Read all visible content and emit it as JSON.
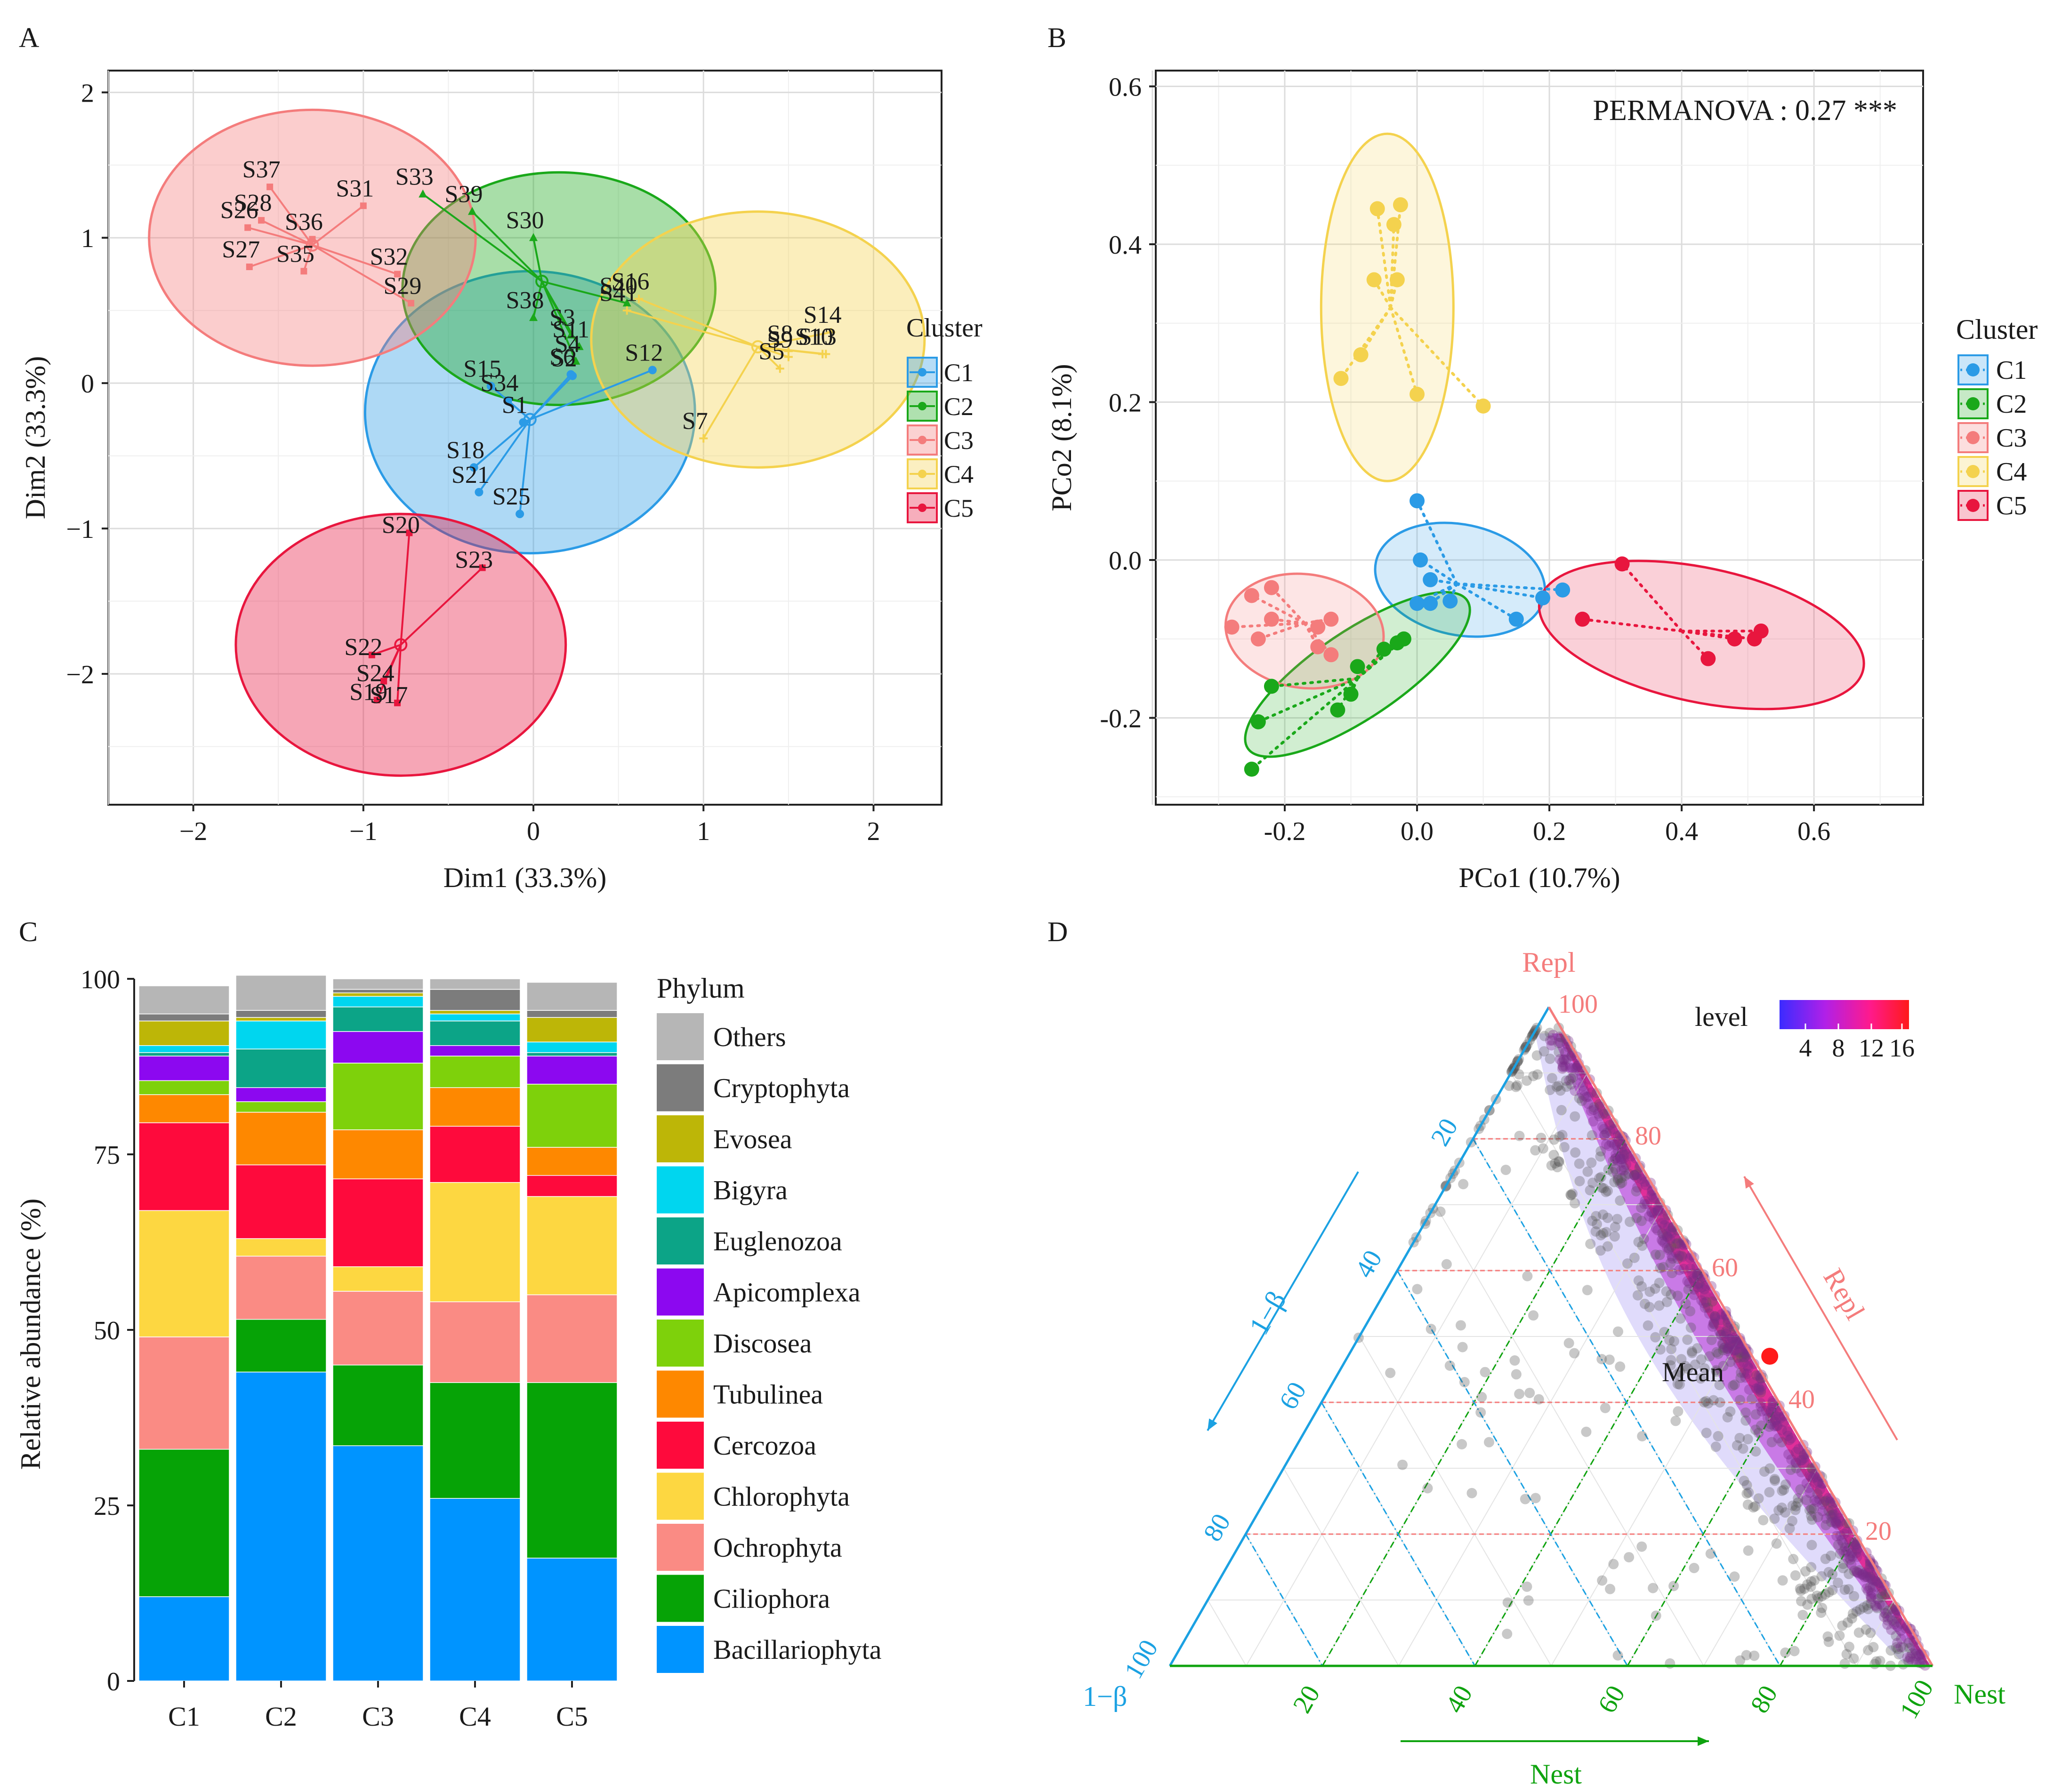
{
  "panels": {
    "a": "A",
    "b": "B",
    "c": "C",
    "d": "D"
  },
  "colors": {
    "C1": "#2b9be6",
    "C2": "#1aa81a",
    "C3": "#f47c7c",
    "C4": "#f4d24e",
    "C5": "#e8163e"
  },
  "chart_data": [
    {
      "id": "A",
      "type": "scatter",
      "title": "",
      "xlabel": "Dim1 (33.3%)",
      "ylabel": "Dim2 (33.3%)",
      "xlim": [
        -2.5,
        2.4
      ],
      "ylim": [
        -2.9,
        2.15
      ],
      "xticks": [
        -2,
        -1,
        0,
        1,
        2
      ],
      "yticks": [
        -2,
        -1,
        0,
        1,
        2
      ],
      "legend_title": "Cluster",
      "legend": [
        "C1",
        "C2",
        "C3",
        "C4",
        "C5"
      ],
      "series": [
        {
          "name": "C1",
          "center": [
            -0.02,
            -0.25
          ],
          "ellipse": {
            "cx": -0.02,
            "cy": -0.2,
            "rx": 0.97,
            "ry": 0.97
          },
          "points": [
            [
              "S1",
              -0.06,
              -0.27
            ],
            [
              "S2",
              0.23,
              0.05
            ],
            [
              "S6",
              0.22,
              0.06
            ],
            [
              "S12",
              0.7,
              0.09
            ],
            [
              "S15",
              -0.25,
              -0.02
            ],
            [
              "S18",
              -0.35,
              -0.58
            ],
            [
              "S21",
              -0.32,
              -0.75
            ],
            [
              "S25",
              -0.08,
              -0.9
            ],
            [
              "S34",
              -0.15,
              -0.12
            ]
          ]
        },
        {
          "name": "C2",
          "center": [
            0.05,
            0.7
          ],
          "ellipse": {
            "cx": 0.15,
            "cy": 0.65,
            "rx": 0.92,
            "ry": 0.8
          },
          "points": [
            [
              "S33",
              -0.65,
              1.3
            ],
            [
              "S39",
              -0.36,
              1.18
            ],
            [
              "S30",
              0.0,
              1.0
            ],
            [
              "S38",
              0.0,
              0.45
            ],
            [
              "S3",
              0.22,
              0.33
            ],
            [
              "S11",
              0.27,
              0.25
            ],
            [
              "S4",
              0.25,
              0.15
            ],
            [
              "S40",
              0.55,
              0.55
            ]
          ]
        },
        {
          "name": "C3",
          "center": [
            -1.3,
            0.95
          ],
          "ellipse": {
            "cx": -1.3,
            "cy": 1.0,
            "rx": 0.96,
            "ry": 0.88
          },
          "points": [
            [
              "S37",
              -1.55,
              1.35
            ],
            [
              "S28",
              -1.6,
              1.12
            ],
            [
              "S26",
              -1.68,
              1.07
            ],
            [
              "S27",
              -1.67,
              0.8
            ],
            [
              "S36",
              -1.3,
              0.99
            ],
            [
              "S35",
              -1.35,
              0.77
            ],
            [
              "S31",
              -1.0,
              1.22
            ],
            [
              "S32",
              -0.8,
              0.75
            ],
            [
              "S29",
              -0.72,
              0.55
            ]
          ]
        },
        {
          "name": "C4",
          "center": [
            1.32,
            0.25
          ],
          "ellipse": {
            "cx": 1.32,
            "cy": 0.3,
            "rx": 0.98,
            "ry": 0.88
          },
          "points": [
            [
              "S16",
              0.62,
              0.58
            ],
            [
              "S41",
              0.55,
              0.5
            ],
            [
              "S9",
              1.5,
              0.18
            ],
            [
              "S14",
              1.75,
              0.35
            ],
            [
              "S13",
              1.72,
              0.2
            ],
            [
              "S8",
              1.5,
              0.22
            ],
            [
              "S5",
              1.45,
              0.1
            ],
            [
              "S10",
              1.7,
              0.2
            ],
            [
              "S7",
              1.0,
              -0.38
            ]
          ]
        },
        {
          "name": "C5",
          "center": [
            -0.78,
            -1.8
          ],
          "ellipse": {
            "cx": -0.78,
            "cy": -1.8,
            "rx": 0.97,
            "ry": 0.9
          },
          "points": [
            [
              "S20",
              -0.73,
              -1.03
            ],
            [
              "S23",
              -0.3,
              -1.27
            ],
            [
              "S22",
              -0.95,
              -1.87
            ],
            [
              "S24",
              -0.88,
              -2.05
            ],
            [
              "S19",
              -0.92,
              -2.18
            ],
            [
              "S17",
              -0.8,
              -2.2
            ]
          ]
        }
      ]
    },
    {
      "id": "B",
      "type": "scatter",
      "title": "",
      "annotation": "PERMANOVA : 0.27 ***",
      "xlabel": "PCo1 (10.7%)",
      "ylabel": "PCo2 (8.1%)",
      "xlim": [
        -0.395,
        0.765
      ],
      "ylim": [
        -0.31,
        0.62
      ],
      "xticks": [
        -0.2,
        0.0,
        0.2,
        0.4,
        0.6
      ],
      "xtick_labels": [
        "-0.2",
        "0.0",
        "0.2",
        "0.4",
        "0.6"
      ],
      "yticks": [
        -0.2,
        0.0,
        0.2,
        0.4,
        0.6
      ],
      "ytick_labels": [
        "-0.2",
        "0.0",
        "0.2",
        "0.4",
        "0.6"
      ],
      "legend_title": "Cluster",
      "legend": [
        "C1",
        "C2",
        "C3",
        "C4",
        "C5"
      ],
      "series": [
        {
          "name": "C1",
          "center": [
            0.06,
            -0.03
          ],
          "ellipse": {
            "cx": 0.065,
            "cy": -0.025,
            "rx": 0.13,
            "ry": 0.07,
            "angle": -12
          },
          "points": [
            [
              0.0,
              0.075
            ],
            [
              0.005,
              0.0
            ],
            [
              0.02,
              -0.025
            ],
            [
              0.0,
              -0.055
            ],
            [
              0.02,
              -0.055
            ],
            [
              0.05,
              -0.052
            ],
            [
              0.15,
              -0.075
            ],
            [
              0.19,
              -0.048
            ],
            [
              0.22,
              -0.038
            ]
          ]
        },
        {
          "name": "C2",
          "center": [
            -0.09,
            -0.15
          ],
          "ellipse": {
            "cx": -0.09,
            "cy": -0.145,
            "rx": 0.2,
            "ry": 0.055,
            "angle": 34
          },
          "points": [
            [
              -0.25,
              -0.265
            ],
            [
              -0.24,
              -0.205
            ],
            [
              -0.22,
              -0.16
            ],
            [
              -0.12,
              -0.19
            ],
            [
              -0.1,
              -0.17
            ],
            [
              -0.09,
              -0.135
            ],
            [
              -0.05,
              -0.113
            ],
            [
              -0.03,
              -0.105
            ],
            [
              -0.02,
              -0.1
            ]
          ]
        },
        {
          "name": "C3",
          "center": [
            -0.17,
            -0.08
          ],
          "ellipse": {
            "cx": -0.17,
            "cy": -0.09,
            "rx": 0.12,
            "ry": 0.072,
            "angle": -8
          },
          "points": [
            [
              -0.28,
              -0.085
            ],
            [
              -0.25,
              -0.045
            ],
            [
              -0.24,
              -0.1
            ],
            [
              -0.22,
              -0.035
            ],
            [
              -0.22,
              -0.075
            ],
            [
              -0.15,
              -0.11
            ],
            [
              -0.15,
              -0.085
            ],
            [
              -0.13,
              -0.12
            ],
            [
              -0.13,
              -0.075
            ]
          ]
        },
        {
          "name": "C4",
          "center": [
            -0.04,
            0.32
          ],
          "ellipse": {
            "cx": -0.045,
            "cy": 0.32,
            "rx": 0.1,
            "ry": 0.22
          },
          "points": [
            [
              -0.06,
              0.445
            ],
            [
              -0.035,
              0.425
            ],
            [
              -0.025,
              0.45
            ],
            [
              -0.065,
              0.355
            ],
            [
              -0.03,
              0.355
            ],
            [
              -0.085,
              0.26
            ],
            [
              -0.115,
              0.23
            ],
            [
              0.0,
              0.21
            ],
            [
              0.1,
              0.195
            ]
          ]
        },
        {
          "name": "C5",
          "center": [
            0.4,
            -0.09
          ],
          "ellipse": {
            "cx": 0.43,
            "cy": -0.095,
            "rx": 0.25,
            "ry": 0.085,
            "angle": -12
          },
          "points": [
            [
              0.25,
              -0.075
            ],
            [
              0.31,
              -0.005
            ],
            [
              0.44,
              -0.125
            ],
            [
              0.48,
              -0.1
            ],
            [
              0.51,
              -0.1
            ],
            [
              0.52,
              -0.09
            ]
          ]
        }
      ]
    },
    {
      "id": "C",
      "type": "bar",
      "stacked": true,
      "title": "",
      "xlabel": "",
      "ylabel": "Relative abundance (%)",
      "ylim": [
        0,
        100
      ],
      "yticks": [
        0,
        25,
        50,
        75,
        100
      ],
      "categories": [
        "C1",
        "C2",
        "C3",
        "C4",
        "C5"
      ],
      "legend_title": "Phylum",
      "series": [
        {
          "name": "Bacillariophyta",
          "color": "#0094ff",
          "values": [
            12,
            44,
            33.5,
            26,
            17.5
          ]
        },
        {
          "name": "Ciliophora",
          "color": "#06a306",
          "values": [
            21,
            7.5,
            11.5,
            16.5,
            25
          ]
        },
        {
          "name": "Ochrophyta",
          "color": "#fa8b84",
          "values": [
            16,
            9,
            10.5,
            11.5,
            12.5
          ]
        },
        {
          "name": "Chlorophyta",
          "color": "#fdd741",
          "values": [
            18,
            2.5,
            3.5,
            17,
            14
          ]
        },
        {
          "name": "Cercozoa",
          "color": "#fe0a3c",
          "values": [
            12.5,
            10.5,
            12.5,
            8,
            3
          ]
        },
        {
          "name": "Tubulinea",
          "color": "#fe8800",
          "values": [
            4,
            7.5,
            7,
            5.5,
            4
          ]
        },
        {
          "name": "Discosea",
          "color": "#7ed10b",
          "values": [
            2,
            1.5,
            9.5,
            4.5,
            9
          ]
        },
        {
          "name": "Apicomplexa",
          "color": "#8c08f0",
          "values": [
            3.5,
            2,
            4.5,
            1.5,
            4
          ]
        },
        {
          "name": "Euglenozoa",
          "color": "#0ca487",
          "values": [
            0.5,
            5.5,
            3.5,
            3.5,
            0.5
          ]
        },
        {
          "name": "Bigyra",
          "color": "#00d6ef",
          "values": [
            1,
            4,
            1.5,
            1,
            1.5
          ]
        },
        {
          "name": "Evosea",
          "color": "#bdb607",
          "values": [
            3.5,
            0.5,
            0.5,
            0.5,
            3.5
          ]
        },
        {
          "name": "Cryptophyta",
          "color": "#7c7c7c",
          "values": [
            1,
            1,
            0.5,
            3,
            1
          ]
        },
        {
          "name": "Others",
          "color": "#b6b6b6",
          "values": [
            4,
            5,
            1.5,
            1.5,
            4
          ]
        }
      ]
    },
    {
      "id": "D",
      "type": "ternary",
      "title": "",
      "axes": {
        "left": "1−β",
        "right": "Repl",
        "bottom": "Nest"
      },
      "ticks": [
        20,
        40,
        60,
        80,
        100
      ],
      "colorbar_title": "level",
      "colorbar_ticks": [
        4,
        8,
        12,
        16
      ],
      "mean_label": "Mean",
      "mean_point": {
        "Nest": 60,
        "Repl": 47,
        "one_minus_beta": 0
      }
    }
  ]
}
